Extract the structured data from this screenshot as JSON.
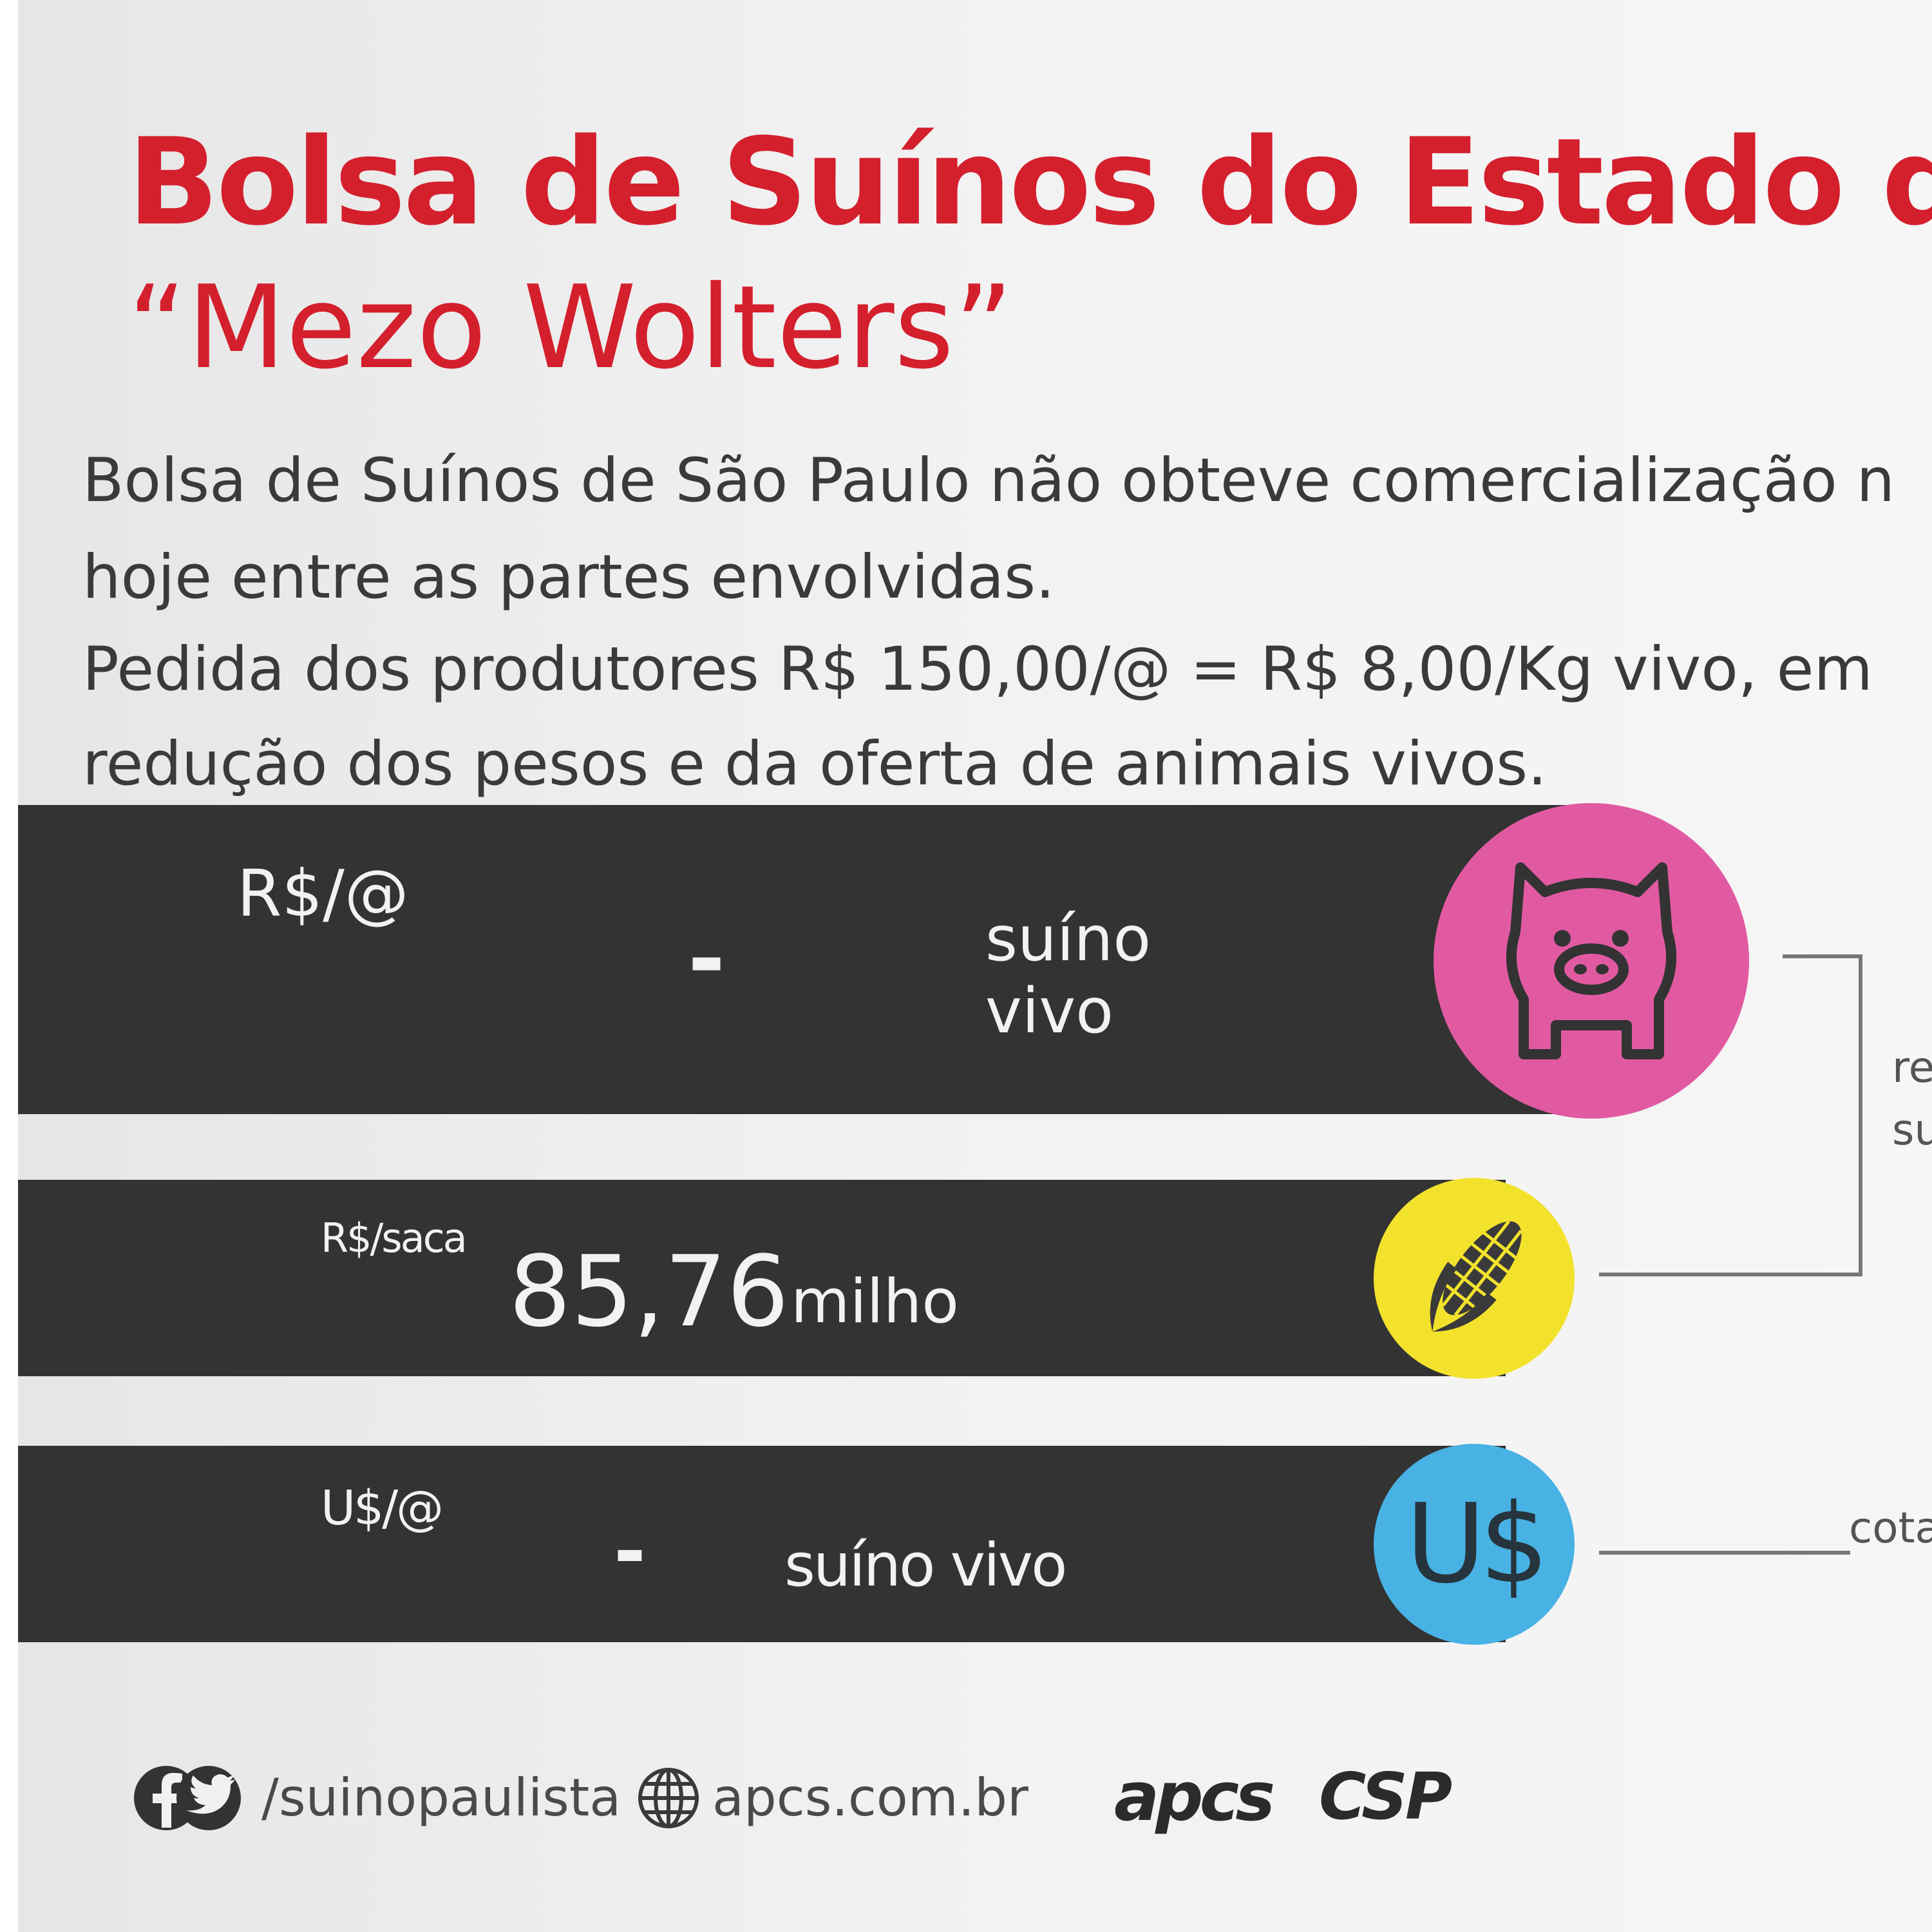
{
  "header": {
    "title": "Bolsa de Suínos do  Estado de São",
    "subtitle": "“Mezo Wolters”"
  },
  "intro": {
    "lines": [
      "Bolsa de Suínos de São Paulo não obteve comercialização n",
      "hoje entre as partes envolvidas.",
      "Pedida dos produtores R$ 150,00/@ = R$ 8,00/Kg vivo, em",
      "redução dos pesos e da oferta de animais vivos."
    ]
  },
  "rows": {
    "suino": {
      "unit": "R$/@",
      "value": "-",
      "label_line1": "suíno",
      "label_line2": "vivo",
      "icon": "pig-icon",
      "color": "#e15aa1"
    },
    "milho": {
      "unit": "R$/saca",
      "value": "85,76",
      "label": "milho",
      "icon": "corn-icon",
      "color": "#f3e22c"
    },
    "dolar": {
      "unit": "U$/@",
      "value": "-",
      "label": "suíno vivo",
      "icon_text": "U$",
      "color": "#48b2e4"
    }
  },
  "side_notes": {
    "relation_line1": "re",
    "relation_line2": "su",
    "quote": "cota"
  },
  "footer": {
    "social_handle": "/suinopaulista",
    "website": "apcs.com.br",
    "logo1": "apcs",
    "logo2": "CSP"
  },
  "colors": {
    "title_red": "#d41f2d",
    "band_dark": "#333333"
  }
}
